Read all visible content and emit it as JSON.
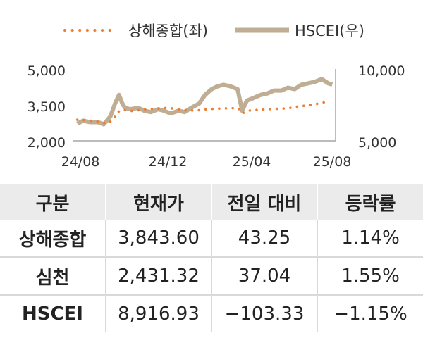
{
  "chart_data": {
    "type": "line",
    "title": "",
    "legend": {
      "position": "top",
      "items": [
        {
          "label": "상해종합(좌)"
        },
        {
          "label": "HSCEI(우)"
        }
      ]
    },
    "x_ticks": [
      "24/08",
      "24/12",
      "25/04",
      "25/08"
    ],
    "y_left": {
      "ticks": [
        "5,000",
        "3,500",
        "2,000"
      ],
      "range": [
        2000,
        5000
      ]
    },
    "y_right": {
      "ticks": [
        "10,000",
        "5,000"
      ],
      "range": [
        5000,
        10000
      ]
    },
    "colors": {
      "shanghai": "#ED7D31",
      "hscei": "#BFAE94"
    },
    "series": [
      {
        "name": "상해종합(좌)",
        "axis": "left",
        "style": "dotted",
        "x": [
          "2024-08-01",
          "2024-08-15",
          "2024-09-01",
          "2024-09-15",
          "2024-09-24",
          "2024-10-01",
          "2024-10-08",
          "2024-10-20",
          "2024-11-01",
          "2024-11-15",
          "2024-12-01",
          "2024-12-15",
          "2025-01-01",
          "2025-01-15",
          "2025-02-01",
          "2025-02-15",
          "2025-03-01",
          "2025-03-15",
          "2025-04-01",
          "2025-04-07",
          "2025-04-20",
          "2025-05-01",
          "2025-05-15",
          "2025-06-01",
          "2025-06-15",
          "2025-07-01",
          "2025-07-15",
          "2025-08-01",
          "2025-08-15"
        ],
        "values": [
          2880,
          2860,
          2800,
          2720,
          2870,
          3200,
          3300,
          3240,
          3280,
          3320,
          3350,
          3380,
          3320,
          3260,
          3280,
          3330,
          3340,
          3360,
          3370,
          3150,
          3280,
          3290,
          3320,
          3340,
          3360,
          3440,
          3480,
          3560,
          3650
        ]
      },
      {
        "name": "HSCEI(우)",
        "axis": "right",
        "style": "solid",
        "x": [
          "2024-08-01",
          "2024-08-10",
          "2024-08-20",
          "2024-09-01",
          "2024-09-10",
          "2024-09-20",
          "2024-09-27",
          "2024-10-03",
          "2024-10-08",
          "2024-10-12",
          "2024-10-20",
          "2024-11-01",
          "2024-11-10",
          "2024-11-20",
          "2024-12-01",
          "2024-12-10",
          "2024-12-20",
          "2025-01-01",
          "2025-01-10",
          "2025-01-20",
          "2025-02-01",
          "2025-02-10",
          "2025-02-20",
          "2025-03-01",
          "2025-03-10",
          "2025-03-20",
          "2025-03-31",
          "2025-04-07",
          "2025-04-14",
          "2025-04-25",
          "2025-05-05",
          "2025-05-15",
          "2025-05-25",
          "2025-06-05",
          "2025-06-15",
          "2025-06-25",
          "2025-07-05",
          "2025-07-15",
          "2025-07-25",
          "2025-08-05",
          "2025-08-15",
          "2025-08-21"
        ],
        "values": [
          6200,
          6400,
          6300,
          6300,
          6150,
          6700,
          7600,
          8200,
          7600,
          7300,
          7200,
          7300,
          7100,
          7000,
          7200,
          7100,
          6900,
          7100,
          7000,
          7300,
          7600,
          8200,
          8600,
          8800,
          8900,
          8800,
          8600,
          7100,
          7800,
          8000,
          8200,
          8300,
          8500,
          8500,
          8700,
          8600,
          8900,
          9000,
          9100,
          9300,
          9000,
          8917
        ]
      }
    ]
  },
  "table": {
    "headers": [
      "구분",
      "현재가",
      "전일 대비",
      "등락률"
    ],
    "rows": [
      {
        "name": "상해종합",
        "price": "3,843.60",
        "change": "43.25",
        "rate": "1.14%"
      },
      {
        "name": "심천",
        "price": "2,431.32",
        "change": "37.04",
        "rate": "1.55%"
      },
      {
        "name": "HSCEI",
        "price": "8,916.93",
        "change": "−103.33",
        "rate": "−1.15%"
      }
    ]
  }
}
